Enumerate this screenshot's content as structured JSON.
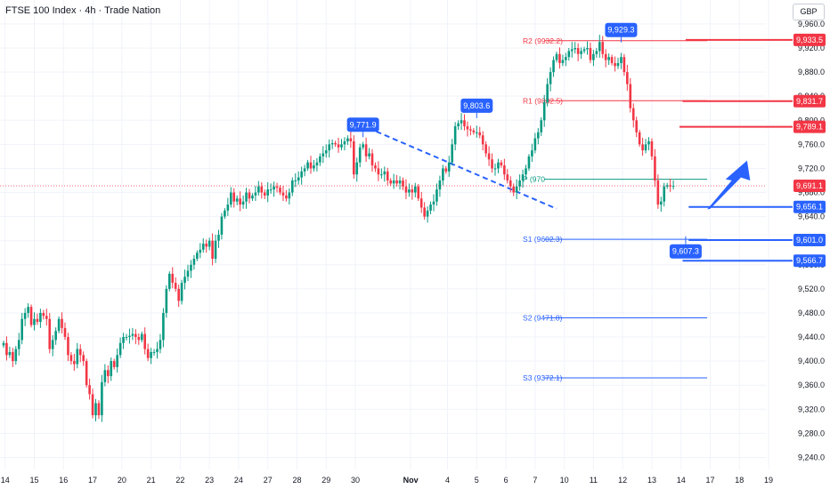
{
  "header": {
    "title": "FTSE 100 Index · 4h · Trade Nation",
    "currency": "GBP"
  },
  "chart_data": {
    "type": "candlestick",
    "ylim": [
      9220,
      9985
    ],
    "y_ticks": [
      "9,240.0",
      "9,280.0",
      "9,320.0",
      "9,360.0",
      "9,400.0",
      "9,440.0",
      "9,480.0",
      "9,520.0",
      "9,560.0",
      "9,600.0",
      "9,640.0",
      "9,680.0",
      "9,720.0",
      "9,760.0",
      "9,800.0",
      "9,840.0",
      "9,880.0",
      "9,920.0",
      "9,960.0"
    ],
    "y_tick_values": [
      9240,
      9280,
      9320,
      9360,
      9400,
      9440,
      9480,
      9520,
      9560,
      9600,
      9640,
      9680,
      9720,
      9760,
      9800,
      9840,
      9880,
      9920,
      9960
    ],
    "x_ticks": [
      {
        "label": "14",
        "slot": 0.5,
        "bold": false
      },
      {
        "label": "15",
        "slot": 10,
        "bold": false
      },
      {
        "label": "16",
        "slot": 19.5,
        "bold": false
      },
      {
        "label": "17",
        "slot": 29,
        "bold": false
      },
      {
        "label": "20",
        "slot": 38.5,
        "bold": false
      },
      {
        "label": "21",
        "slot": 48,
        "bold": false
      },
      {
        "label": "22",
        "slot": 57.5,
        "bold": false
      },
      {
        "label": "23",
        "slot": 67,
        "bold": false
      },
      {
        "label": "24",
        "slot": 76.5,
        "bold": false
      },
      {
        "label": "27",
        "slot": 86,
        "bold": false
      },
      {
        "label": "28",
        "slot": 95.5,
        "bold": false
      },
      {
        "label": "29",
        "slot": 105,
        "bold": false
      },
      {
        "label": "30",
        "slot": 114.5,
        "bold": false
      },
      {
        "label": "Nov",
        "slot": 132.5,
        "bold": true
      },
      {
        "label": "4",
        "slot": 144.5,
        "bold": false
      },
      {
        "label": "5",
        "slot": 154,
        "bold": false
      },
      {
        "label": "6",
        "slot": 163.5,
        "bold": false
      },
      {
        "label": "7",
        "slot": 173,
        "bold": false
      },
      {
        "label": "10",
        "slot": 182.5,
        "bold": false
      },
      {
        "label": "11",
        "slot": 192,
        "bold": false
      },
      {
        "label": "12",
        "slot": 201.5,
        "bold": false
      },
      {
        "label": "13",
        "slot": 211,
        "bold": false
      },
      {
        "label": "14",
        "slot": 220.5,
        "bold": false
      },
      {
        "label": "17",
        "slot": 230,
        "bold": false
      },
      {
        "label": "18",
        "slot": 239.5,
        "bold": false
      },
      {
        "label": "19",
        "slot": 249,
        "bold": false
      }
    ],
    "closes": [
      9430,
      9410,
      9415,
      9400,
      9420,
      9435,
      9470,
      9480,
      9490,
      9460,
      9470,
      9465,
      9480,
      9475,
      9470,
      9420,
      9435,
      9450,
      9470,
      9455,
      9440,
      9410,
      9400,
      9395,
      9420,
      9410,
      9400,
      9360,
      9345,
      9310,
      9330,
      9310,
      9365,
      9385,
      9375,
      9400,
      9390,
      9410,
      9430,
      9440,
      9440,
      9442,
      9445,
      9440,
      9435,
      9445,
      9420,
      9405,
      9415,
      9415,
      9420,
      9435,
      9480,
      9520,
      9545,
      9530,
      9520,
      9500,
      9530,
      9540,
      9550,
      9560,
      9570,
      9580,
      9585,
      9595,
      9590,
      9600,
      9570,
      9600,
      9610,
      9640,
      9650,
      9660,
      9680,
      9665,
      9670,
      9660,
      9665,
      9680,
      9670,
      9675,
      9680,
      9690,
      9680,
      9675,
      9685,
      9685,
      9690,
      9688,
      9680,
      9675,
      9670,
      9680,
      9700,
      9700,
      9705,
      9715,
      9720,
      9730,
      9720,
      9725,
      9730,
      9740,
      9745,
      9750,
      9760,
      9762,
      9760,
      9755,
      9760,
      9765,
      9770,
      9765,
      9710,
      9730,
      9755,
      9760,
      9740,
      9745,
      9725,
      9720,
      9710,
      9710,
      9715,
      9700,
      9695,
      9700,
      9695,
      9700,
      9690,
      9680,
      9685,
      9680,
      9690,
      9670,
      9655,
      9640,
      9650,
      9660,
      9665,
      9685,
      9700,
      9720,
      9715,
      9730,
      9760,
      9790,
      9795,
      9800,
      9790,
      9785,
      9783,
      9780,
      9780,
      9775,
      9760,
      9745,
      9735,
      9720,
      9720,
      9730,
      9725,
      9710,
      9700,
      9690,
      9680,
      9690,
      9700,
      9710,
      9720,
      9740,
      9750,
      9770,
      9780,
      9800,
      9830,
      9860,
      9880,
      9900,
      9910,
      9895,
      9900,
      9905,
      9915,
      9918,
      9920,
      9910,
      9915,
      9918,
      9920,
      9900,
      9910,
      9915,
      9930,
      9910,
      9900,
      9905,
      9895,
      9890,
      9895,
      9905,
      9880,
      9860,
      9820,
      9800,
      9780,
      9760,
      9750,
      9760,
      9765,
      9740,
      9700,
      9660,
      9665,
      9690,
      9692,
      9690,
      9691
    ],
    "price_labels": [
      "9,933.5",
      "9,831.7",
      "9,789.1",
      "9,691.1",
      "9,656.1",
      "9,601.0",
      "9,566.7"
    ],
    "price_label_values": [
      9933.5,
      9831.7,
      9789.1,
      9691.1,
      9656.1,
      9601.0,
      9566.7
    ],
    "price_label_colors": [
      "#f23645",
      "#f23645",
      "#f23645",
      "#f23645",
      "#2962ff",
      "#2962ff",
      "#2962ff"
    ],
    "pivots": [
      {
        "label": "R2 (9932.2)",
        "value": 9932.2,
        "color": "#f23645"
      },
      {
        "label": "R1 (9832.5)",
        "value": 9832.5,
        "color": "#f23645"
      },
      {
        "label": "P (970",
        "value": 9702,
        "color": "#089981"
      },
      {
        "label": "S1 (9602.3)",
        "value": 9602.3,
        "color": "#2962ff"
      },
      {
        "label": "S2 (9471.8)",
        "value": 9471.8,
        "color": "#2962ff"
      },
      {
        "label": "S3 (9372.1)",
        "value": 9372.1,
        "color": "#2962ff"
      }
    ],
    "callouts": [
      {
        "label": "9,771.9",
        "slot": 117,
        "value": 9771.9
      },
      {
        "label": "9,803.6",
        "slot": 154,
        "value": 9803.6
      },
      {
        "label": "9,929.3",
        "slot": 201,
        "value": 9929.3
      },
      {
        "label": "9,607.3",
        "slot": 222,
        "value": 9607.3
      }
    ],
    "colors": {
      "up": "#089981",
      "down": "#f23645",
      "blue": "#2962ff",
      "grid": "#f0f3fa"
    }
  }
}
